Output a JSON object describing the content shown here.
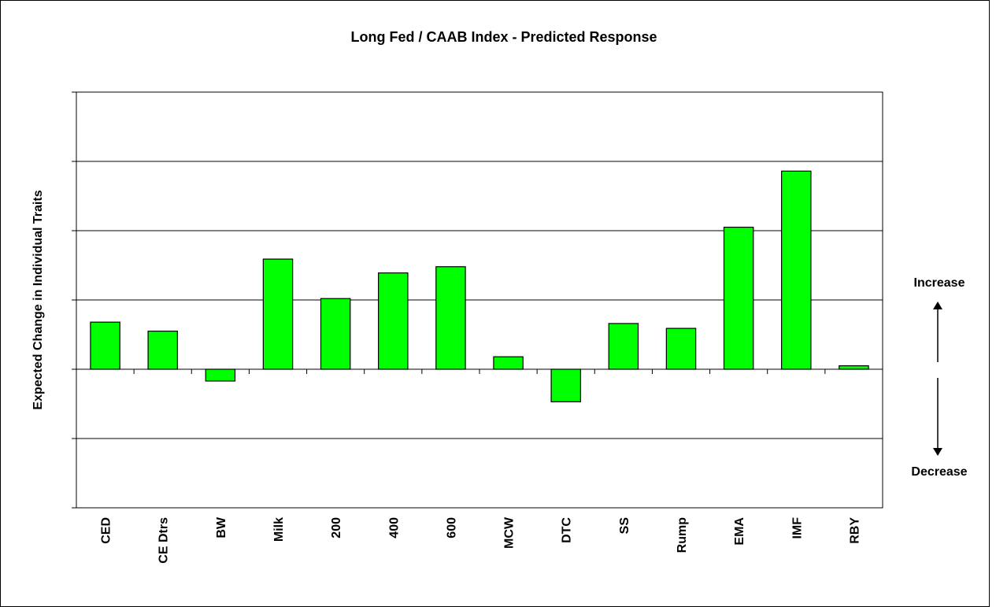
{
  "chart_data": {
    "type": "bar",
    "title": "Long Fed / CAAB Index - Predicted Response",
    "y_label": "Expected Change in Individual Traits",
    "categories": [
      "CED",
      "CE Dtrs",
      "BW",
      "Milk",
      "200",
      "400",
      "600",
      "MCW",
      "DTC",
      "SS",
      "Rump",
      "EMA",
      "IMF",
      "RBY"
    ],
    "values": [
      0.68,
      0.55,
      -0.17,
      1.59,
      1.02,
      1.39,
      1.48,
      0.18,
      -0.47,
      0.66,
      0.59,
      2.05,
      2.86,
      0.05
    ],
    "color": "#00ff00",
    "ylim": [
      -2,
      4
    ],
    "yticks": [
      -2,
      -1,
      0,
      1,
      2,
      3,
      4
    ],
    "grid": true,
    "annotations": [
      "Increase",
      "Decrease"
    ]
  }
}
